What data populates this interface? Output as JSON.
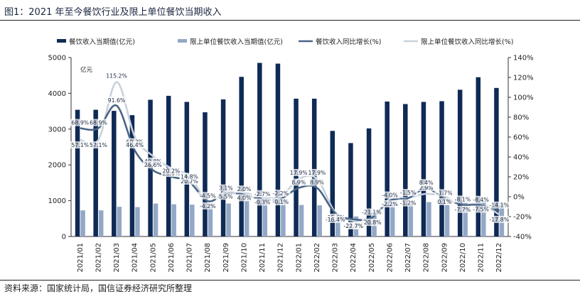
{
  "title": "图1：2021 年至今餐饮行业及限上单位餐饮当期收入",
  "source": "资料来源：国家统计局，国信证券经济研究所整理",
  "chart_data": {
    "type": "bar",
    "categories": [
      "2021/01",
      "2021/02",
      "2021/03",
      "2021/04",
      "2021/05",
      "2021/06",
      "2021/07",
      "2021/08",
      "2021/09",
      "2021/10",
      "2021/11",
      "2021/12",
      "2022/01",
      "2022/02",
      "2022/03",
      "2022/04",
      "2022/05",
      "2022/06",
      "2022/07",
      "2022/08",
      "2022/09",
      "2022/10",
      "2022/11",
      "2022/12"
    ],
    "y_unit_label": "亿元",
    "ylim_left": [
      0,
      5000
    ],
    "yticks_left": [
      0,
      1000,
      2000,
      3000,
      4000,
      5000
    ],
    "ylim_right": [
      -40,
      140
    ],
    "yticks_right": [
      "-40%",
      "-20%",
      "0%",
      "20%",
      "40%",
      "60%",
      "80%",
      "100%",
      "120%",
      "140%"
    ],
    "grid": false,
    "legend_position": "top",
    "series": [
      {
        "name": "餐饮收入当期值(亿元)",
        "kind": "bar",
        "axis": "left",
        "color": "#0f2a55",
        "values": [
          3540,
          3540,
          3510,
          3390,
          3820,
          3930,
          3760,
          3470,
          3830,
          4460,
          4850,
          4830,
          3850,
          3850,
          2950,
          2610,
          3020,
          3770,
          3700,
          3760,
          3780,
          4100,
          4450,
          4150
        ]
      },
      {
        "name": "限上单位餐饮收入当期值(亿元)",
        "kind": "bar",
        "axis": "left",
        "color": "#93a8c6",
        "values": [
          730,
          730,
          830,
          820,
          920,
          900,
          890,
          880,
          920,
          1000,
          1060,
          1050,
          880,
          870,
          630,
          560,
          690,
          930,
          940,
          960,
          880,
          940,
          1000,
          930
        ]
      },
      {
        "name": "餐饮收入同比增长(%)",
        "kind": "line",
        "axis": "right",
        "color": "#4a6585",
        "values": [
          68.9,
          68.9,
          91.6,
          46.4,
          26.6,
          20.2,
          14.8,
          -4.5,
          3.1,
          2.0,
          -2.7,
          -2.2,
          8.9,
          8.9,
          -16.4,
          -22.7,
          -21.1,
          -4.0,
          -1.5,
          8.4,
          -1.7,
          -8.1,
          -8.4,
          -14.1
        ]
      },
      {
        "name": "限上单位餐饮收入同比增长(%)",
        "kind": "line",
        "axis": "right",
        "color": "#c7d1dd",
        "values": [
          57.1,
          57.1,
          115.2,
          60.3,
          40.8,
          28.6,
          20.7,
          -4.2,
          5.5,
          4.0,
          -0.3,
          -0.1,
          17.9,
          17.9,
          -15.6,
          -24.0,
          -20.8,
          -2.2,
          -1.2,
          2.9,
          0.1,
          -7.7,
          -7.5,
          -17.8
        ]
      }
    ]
  }
}
